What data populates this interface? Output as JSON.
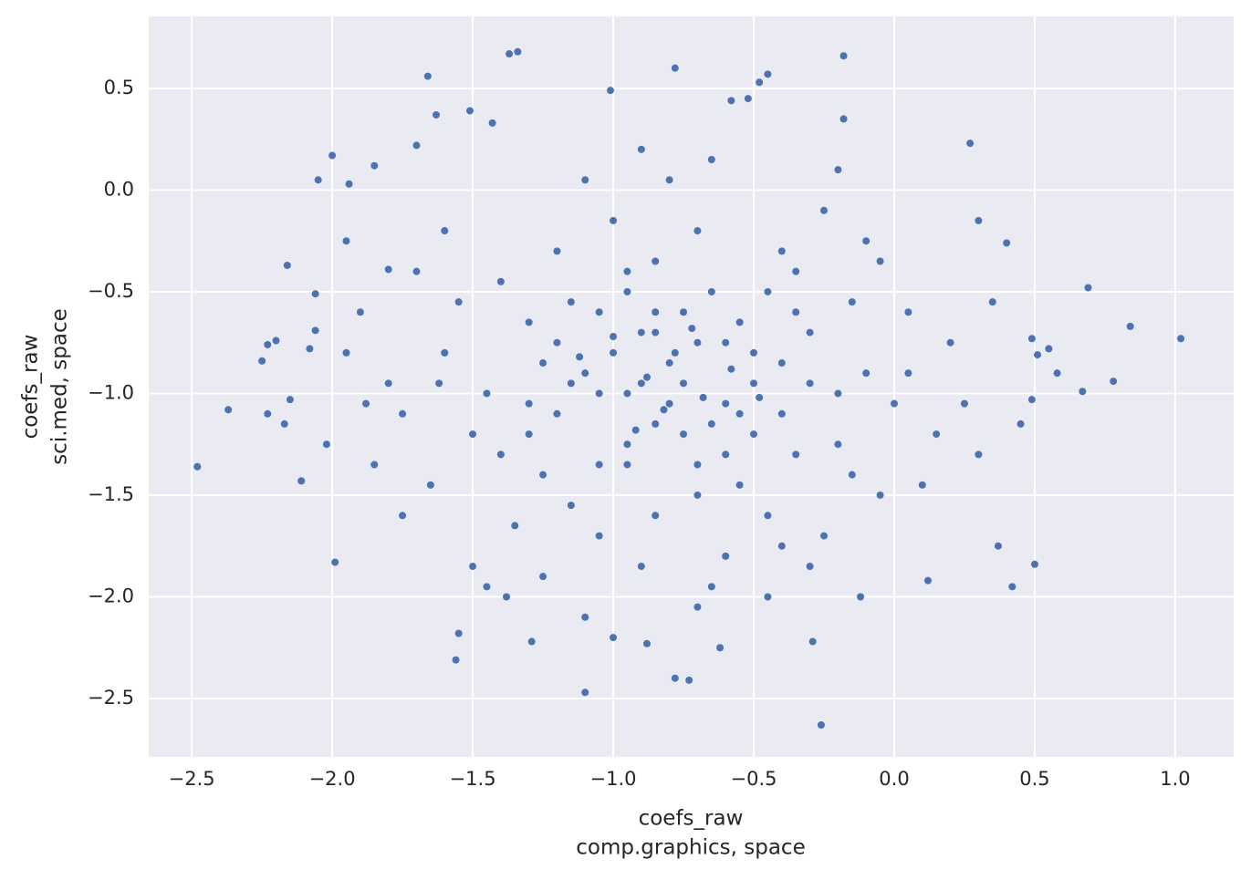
{
  "chart_data": {
    "type": "scatter",
    "xlabel": [
      "coefs_raw",
      "comp.graphics, space"
    ],
    "ylabel": [
      "coefs_raw",
      "sci.med, space"
    ],
    "color": "#4c72b0",
    "grid": true,
    "xlim": [
      -2.653,
      1.208
    ],
    "ylim": [
      -2.787,
      0.854
    ],
    "xticks": [
      {
        "value": -2.5,
        "label": "−2.5"
      },
      {
        "value": -2.0,
        "label": "−2.0"
      },
      {
        "value": -1.5,
        "label": "−1.5"
      },
      {
        "value": -1.0,
        "label": "−1.0"
      },
      {
        "value": -0.5,
        "label": "−0.5"
      },
      {
        "value": 0,
        "label": "0.0"
      },
      0.5,
      {
        "value": 1,
        "label": "1.0"
      }
    ],
    "yticks": [
      {
        "value": -2.5,
        "label": "−2.5"
      },
      {
        "value": -2.0,
        "label": "−2.0"
      },
      {
        "value": -1.5,
        "label": "−1.5"
      },
      {
        "value": -1.0,
        "label": "−1.0"
      },
      {
        "value": -0.5,
        "label": "−0.5"
      },
      {
        "value": 0,
        "label": "0.0"
      },
      0.5
    ],
    "x": [
      -2.48,
      -2.37,
      -2.25,
      -2.23,
      -2.23,
      -2.2,
      -2.17,
      -2.16,
      -2.15,
      -2.11,
      -2.08,
      -2.06,
      -2.05,
      -2.06,
      -2.0,
      -1.99,
      -1.95,
      -1.94,
      -1.37,
      -1.34,
      -1.66,
      -0.78,
      -0.18,
      -1.1,
      -0.26,
      1.02,
      0.84,
      0.78,
      0.69,
      0.67,
      0.42,
      0.5,
      0.37,
      0.58,
      0.55,
      0.51,
      0.49,
      0.49,
      0.4,
      0.3,
      0.27,
      0.12,
      -0.29,
      -0.73,
      -0.78,
      -0.88,
      -1.29,
      -1.56,
      -1.55,
      -1.01,
      -0.48,
      -0.45,
      -0.52,
      -0.58,
      -1.63,
      -1.51,
      -1.43,
      -1.7,
      -1.85,
      -1.8,
      -0.8,
      -0.95,
      -0.7,
      -1.1,
      -0.6,
      -0.85,
      -1.2,
      -0.5,
      -0.75,
      -0.9,
      -1.3,
      -0.4,
      -0.65,
      -1.05,
      -0.3,
      -1.45,
      -0.2,
      -0.55,
      -0.95,
      -1.15,
      -0.1,
      -1.6,
      -0.35,
      -0.85,
      -1.25,
      -0.7,
      -0.45,
      -1.0,
      -0.15,
      -1.4,
      -0.6,
      -1.75,
      0.05,
      -0.9,
      -1.2,
      -0.4,
      -0.8,
      -1.55,
      -0.25,
      -1.05,
      0.15,
      -0.05,
      -1.65,
      -0.7,
      -1.35,
      -0.5,
      -0.95,
      -1.8,
      0.2,
      -0.3,
      -1.1,
      -0.65,
      -1.5,
      -0.85,
      -0.15,
      -1.25,
      -0.55,
      -0.35,
      -1.9,
      0.0,
      -0.75,
      -1.0,
      -0.45,
      -1.3,
      -0.6,
      -0.2,
      -1.7,
      -0.9,
      -1.15,
      -0.05,
      -0.85,
      -0.65,
      -1.05,
      -0.4,
      -0.75,
      -1.2,
      -0.55,
      -0.95,
      -0.3,
      -1.4,
      -0.1,
      -1.85,
      0.1,
      -1.6,
      -0.7,
      -0.2,
      -1.45,
      -0.45,
      0.25,
      -1.95,
      -0.8,
      -1.05,
      -0.6,
      -0.95,
      -0.35,
      -1.3,
      -0.5,
      -0.85,
      -1.15,
      -0.7,
      -0.25,
      -1.5,
      0.35,
      -1.1,
      -0.65,
      -0.9,
      -1.75,
      0.05,
      -0.4,
      -1.25,
      -0.78,
      -0.88,
      -0.68,
      -1.0,
      -0.58,
      -0.82,
      -1.12,
      -0.48,
      -0.72,
      -0.92,
      -2.02,
      -1.88,
      0.3,
      0.45,
      -1.62,
      -0.12,
      -1.0,
      -0.62,
      -1.38,
      -0.18
    ],
    "values": [
      -1.36,
      -1.08,
      -0.84,
      -1.1,
      -0.76,
      -0.74,
      -1.15,
      -0.37,
      -1.03,
      -1.43,
      -0.78,
      -0.51,
      0.05,
      -0.69,
      0.17,
      -1.83,
      -0.25,
      0.03,
      0.67,
      0.68,
      0.56,
      0.6,
      0.66,
      -2.47,
      -2.63,
      -0.73,
      -0.67,
      -0.94,
      -0.48,
      -0.99,
      -1.95,
      -1.84,
      -1.75,
      -0.9,
      -0.78,
      -0.81,
      -1.03,
      -0.73,
      -0.26,
      -0.15,
      0.23,
      -1.92,
      -2.22,
      -2.41,
      -2.4,
      -2.23,
      -2.22,
      -2.31,
      -2.18,
      0.49,
      0.53,
      0.57,
      0.45,
      0.44,
      0.37,
      0.39,
      0.33,
      0.22,
      0.12,
      -0.39,
      -0.85,
      -1.0,
      -0.75,
      -0.9,
      -1.05,
      -0.6,
      -1.1,
      -0.8,
      -1.2,
      -0.7,
      -0.65,
      -1.1,
      -0.5,
      -1.35,
      -0.7,
      -1.0,
      -1.25,
      -1.45,
      -0.4,
      -0.55,
      -0.9,
      -0.8,
      -0.4,
      -1.6,
      -1.4,
      -0.2,
      -1.6,
      -0.15,
      -1.4,
      -1.3,
      -1.8,
      -1.1,
      -0.6,
      -1.85,
      -0.3,
      -0.3,
      0.05,
      -0.55,
      -0.1,
      -1.7,
      -1.2,
      -0.35,
      -1.45,
      -1.5,
      -1.65,
      -0.95,
      -1.25,
      -0.95,
      -0.75,
      -1.85,
      0.05,
      -1.95,
      -1.85,
      -1.15,
      -0.55,
      -0.85,
      -0.65,
      -1.3,
      -0.6,
      -1.05,
      -0.95,
      -0.8,
      -0.5,
      -1.05,
      -1.3,
      -1.0,
      -0.4,
      -0.95,
      -1.55,
      -1.5,
      -0.7,
      -1.15,
      -1.0,
      -0.85,
      -0.6,
      -0.75,
      -1.1,
      -1.35,
      -0.95,
      -0.45,
      -0.25,
      -1.35,
      -1.45,
      -0.2,
      -2.05,
      0.1,
      -1.95,
      -2.0,
      -1.05,
      -0.8,
      -1.05,
      -0.6,
      -0.75,
      -0.5,
      -0.6,
      -1.2,
      -1.2,
      -0.35,
      -0.95,
      -1.35,
      -1.7,
      -1.2,
      -0.55,
      -2.1,
      0.15,
      0.2,
      -1.6,
      -0.9,
      -1.75,
      -1.9,
      -0.8,
      -0.92,
      -1.02,
      -0.72,
      -0.88,
      -1.08,
      -0.82,
      -1.02,
      -0.68,
      -1.18,
      -1.25,
      -1.05,
      -1.3,
      -1.15,
      -0.95,
      -2.0,
      -2.2,
      -2.25,
      -2.0,
      0.35
    ]
  }
}
